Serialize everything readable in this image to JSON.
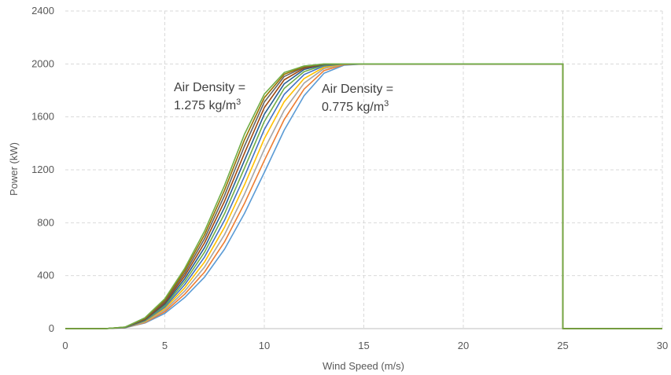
{
  "chart_data": {
    "type": "line",
    "title": "",
    "xlabel": "Wind Speed (m/s)",
    "ylabel": "Power (kW)",
    "xlim": [
      0,
      30
    ],
    "ylim": [
      0,
      2400
    ],
    "xticks": [
      "0",
      "5",
      "10",
      "15",
      "20",
      "25",
      "30"
    ],
    "yticks": [
      "0",
      "400",
      "800",
      "1200",
      "1600",
      "2000",
      "2400"
    ],
    "grid": true,
    "legend": "none",
    "x": [
      0,
      1,
      2,
      3,
      4,
      5,
      6,
      7,
      8,
      9,
      10,
      11,
      12,
      13,
      14,
      15,
      16,
      17,
      18,
      19,
      20,
      21,
      22,
      23,
      24,
      25,
      25,
      26,
      27,
      28,
      29,
      30
    ],
    "series": [
      {
        "color": "#5b9bd5",
        "values": [
          0,
          0,
          0,
          6,
          42,
          115,
          235,
          390,
          600,
          870,
          1180,
          1500,
          1760,
          1930,
          1990,
          2000,
          2000,
          2000,
          2000,
          2000,
          2000,
          2000,
          2000,
          2000,
          2000,
          2000,
          0,
          0,
          0,
          0,
          0,
          0
        ]
      },
      {
        "color": "#ed7d31",
        "values": [
          0,
          0,
          0,
          7,
          46,
          127,
          260,
          428,
          655,
          945,
          1270,
          1580,
          1810,
          1950,
          1995,
          2000,
          2000,
          2000,
          2000,
          2000,
          2000,
          2000,
          2000,
          2000,
          2000,
          2000,
          0,
          0,
          0,
          0,
          0,
          0
        ]
      },
      {
        "color": "#a5a5a5",
        "values": [
          0,
          0,
          0,
          7,
          50,
          139,
          284,
          466,
          710,
          1015,
          1355,
          1650,
          1855,
          1965,
          1998,
          2000,
          2000,
          2000,
          2000,
          2000,
          2000,
          2000,
          2000,
          2000,
          2000,
          2000,
          0,
          0,
          0,
          0,
          0,
          0
        ]
      },
      {
        "color": "#ffc000",
        "values": [
          0,
          0,
          0,
          8,
          54,
          151,
          308,
          504,
          765,
          1085,
          1435,
          1715,
          1890,
          1975,
          1999,
          2000,
          2000,
          2000,
          2000,
          2000,
          2000,
          2000,
          2000,
          2000,
          2000,
          2000,
          0,
          0,
          0,
          0,
          0,
          0
        ]
      },
      {
        "color": "#4472c4",
        "values": [
          0,
          0,
          0,
          8,
          58,
          162,
          332,
          542,
          818,
          1150,
          1505,
          1770,
          1920,
          1985,
          2000,
          2000,
          2000,
          2000,
          2000,
          2000,
          2000,
          2000,
          2000,
          2000,
          2000,
          2000,
          0,
          0,
          0,
          0,
          0,
          0
        ]
      },
      {
        "color": "#70ad47",
        "values": [
          0,
          0,
          0,
          9,
          62,
          173,
          354,
          578,
          868,
          1212,
          1565,
          1815,
          1942,
          1990,
          2000,
          2000,
          2000,
          2000,
          2000,
          2000,
          2000,
          2000,
          2000,
          2000,
          2000,
          2000,
          0,
          0,
          0,
          0,
          0,
          0
        ]
      },
      {
        "color": "#255e91",
        "values": [
          0,
          0,
          0,
          9,
          66,
          184,
          376,
          613,
          916,
          1270,
          1620,
          1850,
          1958,
          1994,
          2000,
          2000,
          2000,
          2000,
          2000,
          2000,
          2000,
          2000,
          2000,
          2000,
          2000,
          2000,
          0,
          0,
          0,
          0,
          0,
          0
        ]
      },
      {
        "color": "#9e480e",
        "values": [
          0,
          0,
          0,
          10,
          70,
          195,
          398,
          648,
          962,
          1325,
          1670,
          1880,
          1968,
          1997,
          2000,
          2000,
          2000,
          2000,
          2000,
          2000,
          2000,
          2000,
          2000,
          2000,
          2000,
          2000,
          0,
          0,
          0,
          0,
          0,
          0
        ]
      },
      {
        "color": "#636363",
        "values": [
          0,
          0,
          0,
          10,
          74,
          205,
          418,
          680,
          1005,
          1378,
          1712,
          1905,
          1975,
          1998,
          2000,
          2000,
          2000,
          2000,
          2000,
          2000,
          2000,
          2000,
          2000,
          2000,
          2000,
          2000,
          0,
          0,
          0,
          0,
          0,
          0
        ]
      },
      {
        "color": "#997300",
        "values": [
          0,
          0,
          0,
          11,
          78,
          215,
          438,
          710,
          1045,
          1425,
          1745,
          1922,
          1980,
          1999,
          2000,
          2000,
          2000,
          2000,
          2000,
          2000,
          2000,
          2000,
          2000,
          2000,
          2000,
          2000,
          0,
          0,
          0,
          0,
          0,
          0
        ]
      },
      {
        "color": "#70ad47",
        "values": [
          0,
          0,
          0,
          11,
          82,
          225,
          455,
          738,
          1082,
          1468,
          1772,
          1935,
          1985,
          2000,
          2000,
          2000,
          2000,
          2000,
          2000,
          2000,
          2000,
          2000,
          2000,
          2000,
          2000,
          2000,
          0,
          0,
          0,
          0,
          0,
          0
        ]
      }
    ],
    "annotations": [
      {
        "line1": "Air Density =",
        "line2_base": "1.275 kg/m",
        "line2_sup": "3"
      },
      {
        "line1": "Air Density =",
        "line2_base": "0.775 kg/m",
        "line2_sup": "3"
      }
    ]
  }
}
